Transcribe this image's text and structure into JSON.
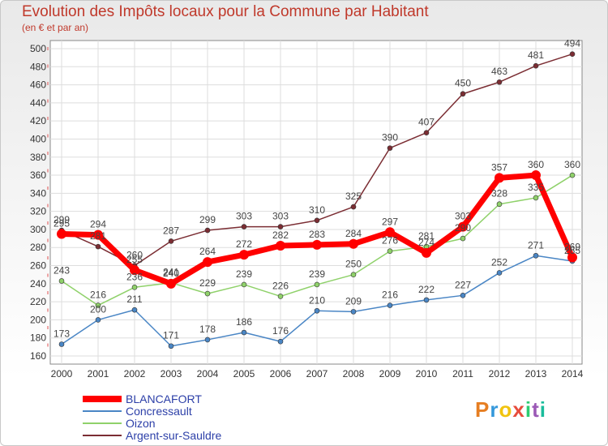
{
  "header": {
    "title": "Evolution des Impôts locaux pour la Commune par Habitant",
    "subtitle": "(en € et par an)"
  },
  "logo": {
    "text": "Proxiti",
    "colors": [
      "#e67e22",
      "#3498db",
      "#f1c40f",
      "#e74c3c",
      "#2ecc71",
      "#9b59b6",
      "#1abc9c"
    ]
  },
  "chart_data": {
    "type": "line",
    "x": [
      2000,
      2001,
      2002,
      2003,
      2004,
      2005,
      2006,
      2007,
      2008,
      2009,
      2010,
      2011,
      2012,
      2013,
      2014
    ],
    "ylim": [
      160,
      500
    ],
    "yticks": [
      160,
      180,
      200,
      220,
      240,
      260,
      280,
      300,
      320,
      340,
      360,
      380,
      400,
      420,
      440,
      460,
      480,
      500
    ],
    "grid": true,
    "legend_position": "bottom-left",
    "series": [
      {
        "name": "Argent-sur-Sauldre",
        "color": "#7b2d33",
        "width": 1.5,
        "values": [
          299,
          281,
          260,
          287,
          299,
          303,
          303,
          310,
          325,
          390,
          407,
          450,
          463,
          481,
          494
        ],
        "labels": [
          "299",
          "281",
          "260",
          "287",
          "299",
          "303",
          "303",
          "310",
          "325",
          "390",
          "407",
          "450",
          "463",
          "481",
          "494"
        ]
      },
      {
        "name": "Oizon",
        "color": "#8fd16a",
        "width": 1.5,
        "values": [
          243,
          216,
          236,
          241,
          229,
          239,
          226,
          239,
          250,
          276,
          281,
          290,
          328,
          335,
          360
        ],
        "labels": [
          "243",
          "216",
          "236",
          "241",
          "229",
          "239",
          "226",
          "239",
          "250",
          "276",
          "281",
          "290",
          "328",
          "335",
          "360"
        ]
      },
      {
        "name": "Concressault",
        "color": "#4a86c5",
        "width": 1.5,
        "values": [
          173,
          200,
          211,
          171,
          178,
          186,
          176,
          210,
          209,
          216,
          222,
          227,
          252,
          271,
          265
        ],
        "labels": [
          "173",
          "200",
          "211",
          "171",
          "178",
          "186",
          "176",
          "210",
          "209",
          "216",
          "222",
          "227",
          "252",
          "271",
          "265"
        ]
      },
      {
        "name": "BLANCAFORT",
        "color": "#ff0000",
        "width": 7,
        "values": [
          295,
          294,
          255,
          240,
          264,
          272,
          282,
          283,
          284,
          297,
          274,
          303,
          357,
          360,
          269
        ],
        "labels": [
          "295",
          "294",
          "255",
          "240",
          "264",
          "272",
          "282",
          "283",
          "284",
          "297",
          "274",
          "303",
          "357",
          "360",
          "269"
        ]
      }
    ],
    "legend": [
      {
        "name": "BLANCAFORT",
        "color": "#ff0000",
        "thick": true
      },
      {
        "name": "Concressault",
        "color": "#4a86c5",
        "thick": false
      },
      {
        "name": "Oizon",
        "color": "#8fd16a",
        "thick": false
      },
      {
        "name": "Argent-sur-Sauldre",
        "color": "#7b2d33",
        "thick": false
      }
    ]
  }
}
